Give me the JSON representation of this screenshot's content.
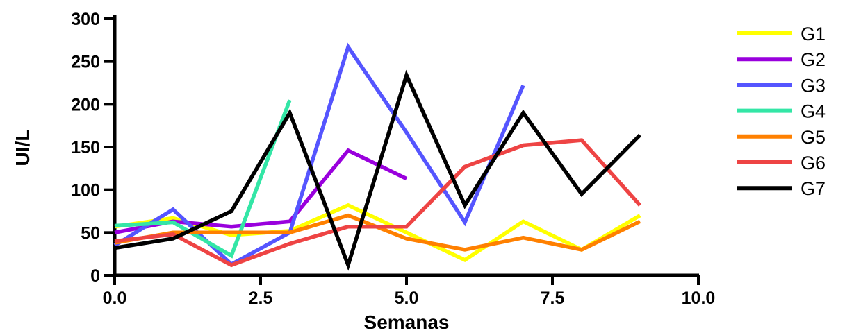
{
  "chart_data": {
    "type": "line",
    "xlabel": "Semanas",
    "ylabel": "UI/L",
    "xlim": [
      0,
      10
    ],
    "ylim": [
      0,
      300
    ],
    "x_ticks": [
      "0.0",
      "2.5",
      "5.0",
      "7.5",
      "10.0"
    ],
    "y_ticks": [
      "0",
      "50",
      "100",
      "150",
      "200",
      "250",
      "300"
    ],
    "grid": false,
    "legend_position": "right",
    "series": [
      {
        "name": "G1",
        "color": "#ffff00",
        "x": [
          0,
          1,
          2,
          3,
          4,
          5,
          6,
          7,
          8,
          9
        ],
        "y": [
          57,
          67,
          47,
          52,
          82,
          50,
          18,
          63,
          30,
          70
        ]
      },
      {
        "name": "G2",
        "color": "#9900dd",
        "x": [
          0,
          1,
          2,
          3,
          4,
          5
        ],
        "y": [
          50,
          63,
          57,
          63,
          146,
          113
        ]
      },
      {
        "name": "G3",
        "color": "#5555ff",
        "x": [
          0,
          1,
          2,
          3,
          4,
          5,
          6,
          7
        ],
        "y": [
          35,
          77,
          13,
          50,
          267,
          167,
          62,
          222
        ]
      },
      {
        "name": "G4",
        "color": "#33e6a6",
        "x": [
          0,
          1,
          2,
          3
        ],
        "y": [
          58,
          62,
          23,
          205
        ]
      },
      {
        "name": "G5",
        "color": "#ff8000",
        "x": [
          0,
          1,
          2,
          3,
          4,
          5,
          6,
          7,
          8,
          9
        ],
        "y": [
          38,
          50,
          50,
          50,
          70,
          43,
          30,
          44,
          30,
          63
        ]
      },
      {
        "name": "G6",
        "color": "#ee4444",
        "x": [
          0,
          1,
          2,
          3,
          4,
          5,
          6,
          7,
          8,
          9
        ],
        "y": [
          40,
          48,
          12,
          37,
          57,
          57,
          127,
          152,
          158,
          82
        ]
      },
      {
        "name": "G7",
        "color": "#000000",
        "x": [
          0,
          1,
          2,
          3,
          4,
          5,
          6,
          7,
          8,
          9
        ],
        "y": [
          32,
          43,
          75,
          190,
          12,
          234,
          82,
          190,
          95,
          164
        ]
      }
    ]
  }
}
